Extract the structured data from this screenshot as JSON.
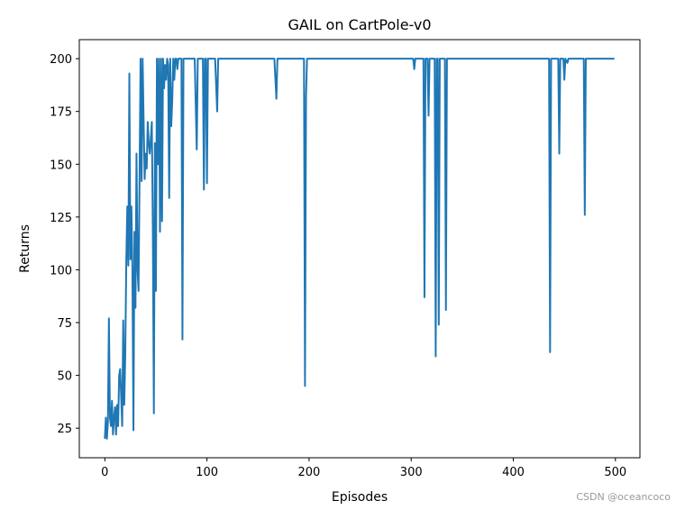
{
  "chart_data": {
    "type": "line",
    "title": "GAIL on CartPole-v0",
    "x_label": "Episodes",
    "y_label": "Returns",
    "watermark": "CSDN @oceancoco",
    "xlim": [
      -25,
      524
    ],
    "ylim": [
      11,
      209
    ],
    "xticks": [
      0,
      100,
      200,
      300,
      400,
      500
    ],
    "yticks": [
      25,
      50,
      75,
      100,
      125,
      150,
      175,
      200
    ],
    "grid": false,
    "series": [
      {
        "color": "#1f77b4",
        "x": [
          0,
          1,
          2,
          3,
          4,
          5,
          6,
          7,
          8,
          9,
          10,
          11,
          12,
          13,
          14,
          15,
          16,
          17,
          18,
          19,
          20,
          21,
          22,
          23,
          24,
          25,
          26,
          27,
          28,
          29,
          30,
          31,
          32,
          33,
          34,
          35,
          36,
          37,
          38,
          39,
          40,
          41,
          42,
          43,
          44,
          45,
          46,
          47,
          48,
          49,
          50,
          51,
          52,
          53,
          54,
          55,
          56,
          57,
          58,
          59,
          60,
          61,
          62,
          63,
          64,
          65,
          66,
          67,
          68,
          69,
          70,
          71,
          72,
          73,
          74,
          75,
          76,
          77,
          78,
          79,
          88,
          90,
          91,
          96,
          97,
          98,
          99,
          100,
          101,
          108,
          110,
          111,
          166,
          168,
          169,
          195,
          196,
          197,
          198,
          199,
          302,
          303,
          304,
          312,
          313,
          314,
          316,
          317,
          318,
          323,
          324,
          325,
          326,
          327,
          328,
          333,
          334,
          335,
          435,
          436,
          437,
          444,
          445,
          446,
          449,
          450,
          451,
          453,
          454,
          469,
          470,
          471,
          499
        ],
        "values": [
          20,
          30,
          20,
          28,
          77,
          30,
          26,
          38,
          22,
          30,
          35,
          22,
          36,
          26,
          50,
          53,
          40,
          26,
          76,
          36,
          60,
          104,
          130,
          102,
          193,
          105,
          130,
          100,
          24,
          118,
          82,
          155,
          100,
          90,
          145,
          200,
          142,
          200,
          170,
          143,
          155,
          148,
          170,
          160,
          155,
          162,
          170,
          120,
          32,
          160,
          90,
          200,
          150,
          200,
          118,
          200,
          123,
          200,
          186,
          197,
          190,
          200,
          197,
          134,
          200,
          168,
          180,
          200,
          190,
          200,
          200,
          195,
          200,
          200,
          200,
          200,
          67,
          200,
          200,
          200,
          200,
          157,
          200,
          200,
          138,
          200,
          200,
          141,
          200,
          200,
          175,
          200,
          200,
          181,
          200,
          200,
          45,
          182,
          200,
          200,
          200,
          195,
          200,
          200,
          87,
          200,
          200,
          173,
          200,
          200,
          59,
          200,
          200,
          74,
          200,
          200,
          81,
          200,
          200,
          61,
          200,
          200,
          155,
          200,
          200,
          190,
          200,
          198,
          200,
          200,
          126,
          200,
          200
        ]
      }
    ]
  }
}
